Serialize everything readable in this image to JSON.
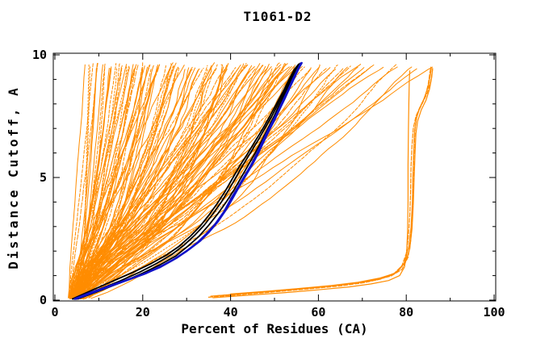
{
  "window": {
    "background": "#FFFFFF"
  },
  "chart_data": {
    "type": "line",
    "title": "T1061-D2",
    "xlabel": "Percent of Residues (CA)",
    "ylabel": "Distance Cutoff, A",
    "xlim": [
      0,
      100
    ],
    "ylim": [
      0,
      10
    ],
    "grid": false,
    "legend": "none",
    "axes": {
      "x_major_ticks": [
        0,
        20,
        40,
        60,
        80,
        100
      ],
      "x_minor_step": 10,
      "y_major_ticks": [
        0,
        5,
        10
      ],
      "y_minor_step": 1,
      "ticks_inward_mirrored": true
    },
    "colors": {
      "model_lines": "#FF8C00",
      "highlight_black": "#000000",
      "highlight_blue": "#1111C8",
      "axis": "#000000",
      "text": "#000000",
      "background": "#FFFFFF"
    },
    "description": "GDT-style cumulative accuracy plot for target T1061-D2: ~130 orange model curves fan out from (x=3-6, y=0); a dark blue/black highlighted bundle rises through the dense band to (56, 9.65); a separate orange outlier group runs flat near y=0.3 from x=35 then climbs nearly vertically at x=80-86.",
    "series_groups": {
      "orange_fan": {
        "name": "model curves",
        "count_buckets_top_x": [
          {
            "range": [
              7,
              16
            ],
            "count": 18
          },
          {
            "range": [
              16,
              28
            ],
            "count": 30
          },
          {
            "range": [
              28,
              42
            ],
            "count": 26
          },
          {
            "range": [
              42,
              58
            ],
            "count": 34
          },
          {
            "range": [
              58,
              72
            ],
            "count": 14
          },
          {
            "range": [
              72,
              88
            ],
            "count": 8
          }
        ],
        "x_start_range": [
          3.0,
          6.5
        ],
        "y_top_range": [
          9.4,
          9.68
        ],
        "base_fraction_curve": {
          "y": [
            0,
            0.5,
            1,
            1.5,
            2,
            2.5,
            3,
            4,
            5,
            6,
            7,
            8,
            9,
            9.68
          ],
          "f": [
            0,
            0.055,
            0.12,
            0.19,
            0.27,
            0.34,
            0.41,
            0.52,
            0.62,
            0.71,
            0.8,
            0.875,
            0.945,
            1
          ]
        },
        "shape_exponent_range": [
          0.65,
          1.55
        ],
        "dashed_fraction": 0.35,
        "dash_patterns": [
          "4 2",
          "2 2",
          "6 2"
        ],
        "seed": 7
      },
      "orange_outliers": {
        "name": "outlier model group (flat then vertical at x≈80)",
        "dashed": [
          true,
          false,
          false,
          true,
          false
        ],
        "paths": [
          [
            [
              35,
              0.12
            ],
            [
              42,
              0.22
            ],
            [
              50,
              0.34
            ],
            [
              58,
              0.46
            ],
            [
              65,
              0.58
            ],
            [
              70,
              0.7
            ],
            [
              74,
              0.85
            ],
            [
              77,
              1.05
            ],
            [
              79,
              1.4
            ],
            [
              80,
              1.9
            ],
            [
              80.5,
              2.6
            ],
            [
              80.8,
              3.5
            ],
            [
              81,
              4.5
            ],
            [
              81.1,
              5.5
            ],
            [
              81.3,
              6.3
            ],
            [
              81.6,
              7.0
            ],
            [
              82.2,
              7.5
            ],
            [
              83.2,
              7.9
            ],
            [
              84.3,
              8.3
            ],
            [
              85,
              8.8
            ],
            [
              85.4,
              9.3
            ],
            [
              85.6,
              9.5
            ]
          ],
          [
            [
              35.5,
              0.16
            ],
            [
              43,
              0.27
            ],
            [
              51,
              0.39
            ],
            [
              59,
              0.51
            ],
            [
              66,
              0.64
            ],
            [
              71,
              0.77
            ],
            [
              75,
              0.93
            ],
            [
              78,
              1.15
            ],
            [
              79.8,
              1.55
            ],
            [
              80.8,
              2.1
            ],
            [
              81.3,
              2.9
            ],
            [
              81.6,
              3.9
            ],
            [
              81.8,
              5.0
            ],
            [
              82,
              6.0
            ],
            [
              82.2,
              6.8
            ],
            [
              82.6,
              7.3
            ],
            [
              83.4,
              7.75
            ],
            [
              84.5,
              8.15
            ],
            [
              85.3,
              8.6
            ],
            [
              85.8,
              9.1
            ],
            [
              86,
              9.45
            ]
          ],
          [
            [
              36,
              0.1
            ],
            [
              44,
              0.2
            ],
            [
              52,
              0.3
            ],
            [
              60,
              0.42
            ],
            [
              67,
              0.54
            ],
            [
              72,
              0.66
            ],
            [
              76,
              0.8
            ],
            [
              78.5,
              1.0
            ],
            [
              79.6,
              1.35
            ],
            [
              80.1,
              1.9
            ],
            [
              80.3,
              2.8
            ],
            [
              80.4,
              4.0
            ],
            [
              80.4,
              5.5
            ],
            [
              80.5,
              7.0
            ],
            [
              80.6,
              8.2
            ],
            [
              80.7,
              9.0
            ],
            [
              80.8,
              9.35
            ]
          ],
          [
            [
              37,
              0.18
            ],
            [
              45,
              0.3
            ],
            [
              53,
              0.42
            ],
            [
              61,
              0.55
            ],
            [
              68,
              0.68
            ],
            [
              73,
              0.82
            ],
            [
              76.5,
              0.98
            ],
            [
              79,
              1.25
            ],
            [
              80.4,
              1.75
            ],
            [
              81,
              2.4
            ],
            [
              81.3,
              3.2
            ],
            [
              81.5,
              4.2
            ],
            [
              81.6,
              5.2
            ],
            [
              81.8,
              6.2
            ],
            [
              82,
              7.0
            ],
            [
              82.5,
              7.6
            ],
            [
              83.6,
              8.0
            ],
            [
              84.8,
              8.45
            ],
            [
              85.6,
              8.95
            ],
            [
              86,
              9.4
            ]
          ],
          [
            [
              40,
              0.25
            ],
            [
              48,
              0.36
            ],
            [
              56,
              0.48
            ],
            [
              63,
              0.6
            ],
            [
              69,
              0.73
            ],
            [
              74,
              0.9
            ],
            [
              77.5,
              1.1
            ],
            [
              79.5,
              1.5
            ],
            [
              80.6,
              2.2
            ],
            [
              81.1,
              3.0
            ],
            [
              81.4,
              4.0
            ],
            [
              81.5,
              5.0
            ],
            [
              81.7,
              6.0
            ],
            [
              81.9,
              6.9
            ],
            [
              82.3,
              7.4
            ],
            [
              83,
              7.8
            ],
            [
              84,
              8.2
            ],
            [
              85,
              8.7
            ],
            [
              85.5,
              9.2
            ],
            [
              85.7,
              9.45
            ]
          ]
        ]
      },
      "black_curves": {
        "name": "highlighted reference curves (black)",
        "paths": [
          [
            [
              4,
              0.05
            ],
            [
              9,
              0.45
            ],
            [
              13.5,
              0.8
            ],
            [
              18,
              1.15
            ],
            [
              22,
              1.5
            ],
            [
              25.5,
              1.85
            ],
            [
              28.3,
              2.2
            ],
            [
              30.8,
              2.6
            ],
            [
              33,
              3.0
            ],
            [
              35,
              3.45
            ],
            [
              37,
              3.95
            ],
            [
              38.8,
              4.45
            ],
            [
              40.4,
              4.95
            ],
            [
              42,
              5.45
            ],
            [
              43.8,
              5.95
            ],
            [
              45.5,
              6.45
            ],
            [
              47.2,
              6.95
            ],
            [
              48.8,
              7.45
            ],
            [
              50.3,
              7.95
            ],
            [
              51.8,
              8.45
            ],
            [
              53.2,
              8.95
            ],
            [
              54.5,
              9.4
            ],
            [
              55.5,
              9.62
            ]
          ],
          [
            [
              4.2,
              0.05
            ],
            [
              9.8,
              0.42
            ],
            [
              14.8,
              0.78
            ],
            [
              19.3,
              1.14
            ],
            [
              23.2,
              1.5
            ],
            [
              26.6,
              1.86
            ],
            [
              29.4,
              2.24
            ],
            [
              31.8,
              2.64
            ],
            [
              34,
              3.06
            ],
            [
              36,
              3.52
            ],
            [
              37.9,
              4.0
            ],
            [
              39.6,
              4.5
            ],
            [
              41.2,
              5.0
            ],
            [
              42.8,
              5.5
            ],
            [
              44.5,
              6.0
            ],
            [
              46.2,
              6.5
            ],
            [
              47.8,
              7.0
            ],
            [
              49.4,
              7.5
            ],
            [
              50.8,
              8.0
            ],
            [
              52.3,
              8.5
            ],
            [
              53.6,
              9.0
            ],
            [
              54.8,
              9.42
            ],
            [
              55.7,
              9.63
            ]
          ],
          [
            [
              5.2,
              0.05
            ],
            [
              10.5,
              0.4
            ],
            [
              15.5,
              0.75
            ],
            [
              20,
              1.1
            ],
            [
              24,
              1.45
            ],
            [
              27.5,
              1.8
            ],
            [
              30.3,
              2.2
            ],
            [
              32.8,
              2.6
            ],
            [
              35,
              3.05
            ],
            [
              37,
              3.5
            ],
            [
              39,
              4.0
            ],
            [
              40.8,
              4.5
            ],
            [
              42.4,
              5.0
            ],
            [
              44,
              5.5
            ],
            [
              45.6,
              6.0
            ],
            [
              47.1,
              6.5
            ],
            [
              48.5,
              7.0
            ],
            [
              49.9,
              7.5
            ],
            [
              51.2,
              8.0
            ],
            [
              52.6,
              8.5
            ],
            [
              53.8,
              9.0
            ],
            [
              55,
              9.45
            ],
            [
              55.9,
              9.66
            ]
          ]
        ]
      },
      "blue_curves": {
        "name": "highlighted reference curves (blue)",
        "paths": [
          [
            [
              4.5,
              0.05
            ],
            [
              8,
              0.3
            ],
            [
              12,
              0.55
            ],
            [
              16,
              0.8
            ],
            [
              20,
              1.05
            ],
            [
              24,
              1.35
            ],
            [
              27,
              1.65
            ],
            [
              30,
              2.0
            ],
            [
              32.5,
              2.35
            ],
            [
              34.5,
              2.7
            ],
            [
              36.5,
              3.1
            ],
            [
              38.5,
              3.6
            ],
            [
              40,
              4.1
            ],
            [
              41.5,
              4.55
            ],
            [
              43,
              5.0
            ],
            [
              44.5,
              5.45
            ],
            [
              45.8,
              5.9
            ],
            [
              47,
              6.35
            ],
            [
              48.2,
              6.8
            ],
            [
              49.5,
              7.25
            ],
            [
              50.8,
              7.7
            ],
            [
              52,
              8.15
            ],
            [
              53.2,
              8.6
            ],
            [
              54.3,
              9.05
            ],
            [
              55.3,
              9.4
            ],
            [
              56,
              9.65
            ]
          ],
          [
            [
              4.8,
              0.05
            ],
            [
              8.8,
              0.32
            ],
            [
              12.8,
              0.58
            ],
            [
              16.8,
              0.84
            ],
            [
              20.8,
              1.1
            ],
            [
              24.6,
              1.42
            ],
            [
              27.7,
              1.72
            ],
            [
              30.6,
              2.08
            ],
            [
              33.1,
              2.42
            ],
            [
              35.1,
              2.78
            ],
            [
              37.1,
              3.2
            ],
            [
              39,
              3.7
            ],
            [
              40.6,
              4.2
            ],
            [
              42,
              4.65
            ],
            [
              43.5,
              5.1
            ],
            [
              45,
              5.55
            ],
            [
              46.3,
              6.0
            ],
            [
              47.5,
              6.45
            ],
            [
              48.7,
              6.9
            ],
            [
              50,
              7.35
            ],
            [
              51.2,
              7.8
            ],
            [
              52.4,
              8.25
            ],
            [
              53.5,
              8.68
            ],
            [
              54.6,
              9.1
            ],
            [
              55.5,
              9.45
            ],
            [
              56.2,
              9.67
            ]
          ]
        ]
      }
    }
  }
}
